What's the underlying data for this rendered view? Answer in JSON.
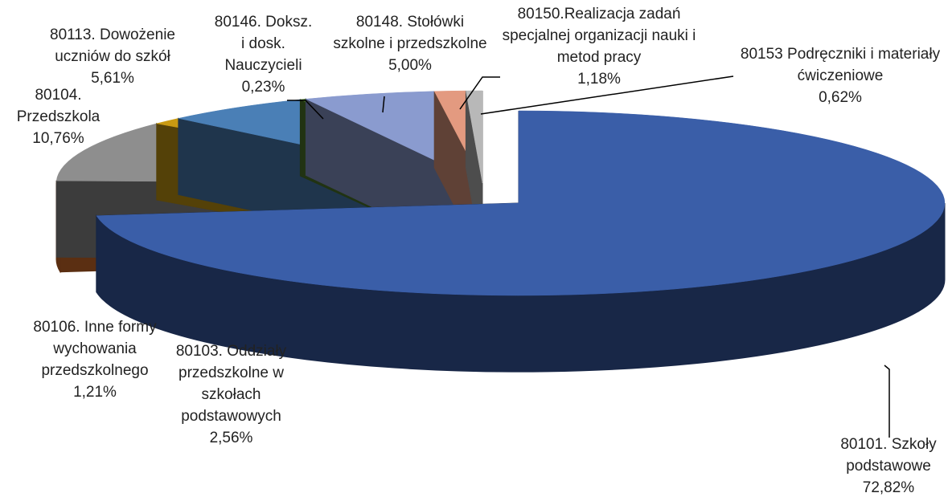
{
  "chart_data": {
    "type": "pie3d",
    "categories": [
      "80101. Szkoły podstawowe",
      "80103. Oddziały przedszkolne w szkołach podstawowych",
      "80104. Przedszkola",
      "80106. Inne formy wychowania przedszkolnego",
      "80113. Dowożenie uczniów do szkół",
      "80146. Doksz. i dosk. Nauczycieli",
      "80148. Stołówki szkolne i przedszkolne",
      "80150.Realizacja zadań specjalnej organizacji nauki i metod pracy",
      "80153 Podręczniki i materiały ćwiczeniowe"
    ],
    "values": [
      72.82,
      2.56,
      10.76,
      1.21,
      5.61,
      0.23,
      5.0,
      1.18,
      0.62
    ],
    "value_labels": [
      "72,82%",
      "2,56%",
      "10,76%",
      "1,21%",
      "5,61%",
      "0,23%",
      "5,00%",
      "1,18%",
      "0,62%"
    ],
    "colors": [
      "#3a5ea8",
      "#d8702a",
      "#8e8e8e",
      "#c99a12",
      "#4a7fb6",
      "#4f7a2a",
      "#8a9bcf",
      "#e39a80",
      "#b8b8b8"
    ]
  }
}
